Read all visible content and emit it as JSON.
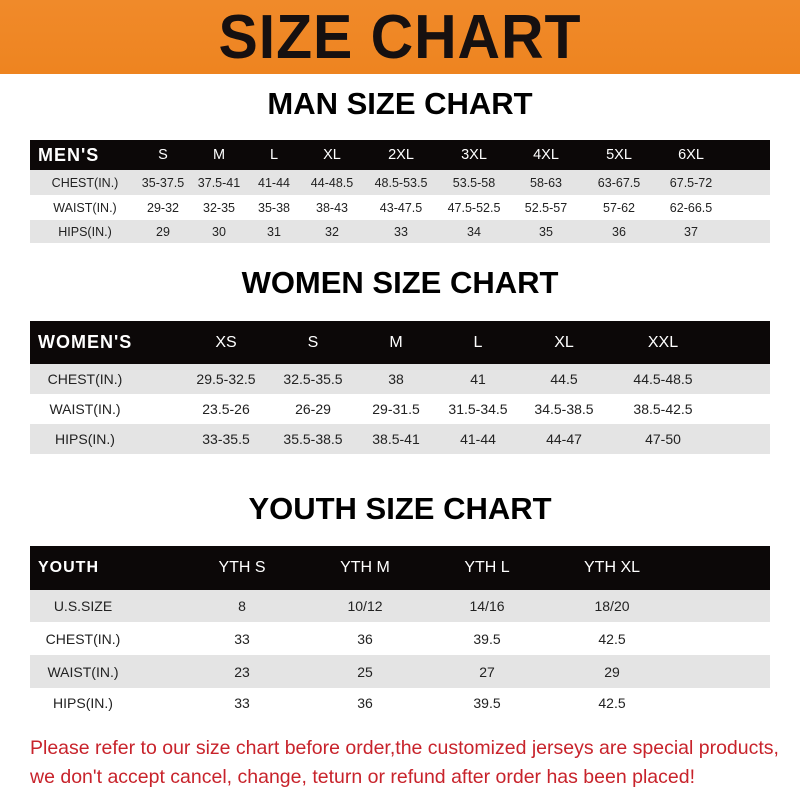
{
  "banner_title": "SIZE CHART",
  "colors": {
    "banner": "#ee8420",
    "header_row": "#0c0808",
    "notice_text": "#c8232b"
  },
  "men": {
    "title": "MAN SIZE CHART",
    "header": [
      "MEN'S",
      "S",
      "M",
      "L",
      "XL",
      "2XL",
      "3XL",
      "4XL",
      "5XL",
      "6XL"
    ],
    "rows": [
      [
        "CHEST(IN.)",
        "35-37.5",
        "37.5-41",
        "41-44",
        "44-48.5",
        "48.5-53.5",
        "53.5-58",
        "58-63",
        "63-67.5",
        "67.5-72"
      ],
      [
        "WAIST(IN.)",
        "29-32",
        "32-35",
        "35-38",
        "38-43",
        "43-47.5",
        "47.5-52.5",
        "52.5-57",
        "57-62",
        "62-66.5"
      ],
      [
        "HIPS(IN.)",
        "29",
        "30",
        "31",
        "32",
        "33",
        "34",
        "35",
        "36",
        "37"
      ]
    ]
  },
  "women": {
    "title": "WOMEN SIZE CHART",
    "header": [
      "WOMEN'S",
      "XS",
      "S",
      "M",
      "L",
      "XL",
      "XXL"
    ],
    "rows": [
      [
        "CHEST(IN.)",
        "29.5-32.5",
        "32.5-35.5",
        "38",
        "41",
        "44.5",
        "44.5-48.5"
      ],
      [
        "WAIST(IN.)",
        "23.5-26",
        "26-29",
        "29-31.5",
        "31.5-34.5",
        "34.5-38.5",
        "38.5-42.5"
      ],
      [
        "HIPS(IN.)",
        "33-35.5",
        "35.5-38.5",
        "38.5-41",
        "41-44",
        "44-47",
        "47-50"
      ]
    ]
  },
  "youth": {
    "title": "YOUTH SIZE CHART",
    "header": [
      "YOUTH",
      "YTH S",
      "YTH M",
      "YTH L",
      "YTH XL"
    ],
    "rows": [
      [
        "U.S.SIZE",
        "8",
        "10/12",
        "14/16",
        "18/20"
      ],
      [
        "CHEST(IN.)",
        "33",
        "36",
        "39.5",
        "42.5"
      ],
      [
        "WAIST(IN.)",
        "23",
        "25",
        "27",
        "29"
      ],
      [
        "HIPS(IN.)",
        "33",
        "36",
        "39.5",
        "42.5"
      ]
    ]
  },
  "notice": {
    "line1": "Please refer to our size chart before order,the customized jerseys are special products,",
    "line2": "we don't accept cancel, change, teturn or refund after order has been placed!"
  }
}
